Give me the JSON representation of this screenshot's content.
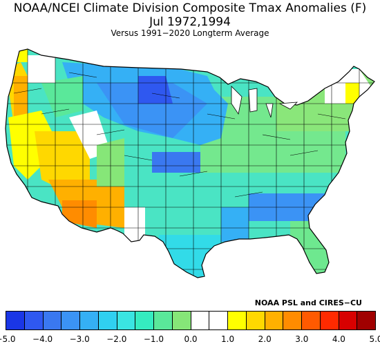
{
  "header": {
    "title": "NOAA/NCEI Climate Division Composite Tmax Anomalies (F)",
    "subtitle": "Jul   1972,1994",
    "baseline": "Versus 1991−2020 Longterm Average"
  },
  "credit": "NOAA PSL and CIRES−CU",
  "legend": {
    "colors": [
      "#1a36e6",
      "#2f58f0",
      "#3a78f0",
      "#3b93f5",
      "#35b0f5",
      "#30d0f0",
      "#3ae5e2",
      "#35ecc0",
      "#5ae89a",
      "#86e678",
      "#ffffff",
      "#ffffff",
      "#ffff00",
      "#ffd800",
      "#ffb000",
      "#ff8c00",
      "#ff5a00",
      "#ff2a00",
      "#d80000",
      "#a00000"
    ],
    "tick_labels": [
      "−5.0",
      "−4.0",
      "−3.0",
      "−2.0",
      "−1.0",
      "0.0",
      "1.0",
      "2.0",
      "3.0",
      "4.0",
      "5.0"
    ]
  }
}
